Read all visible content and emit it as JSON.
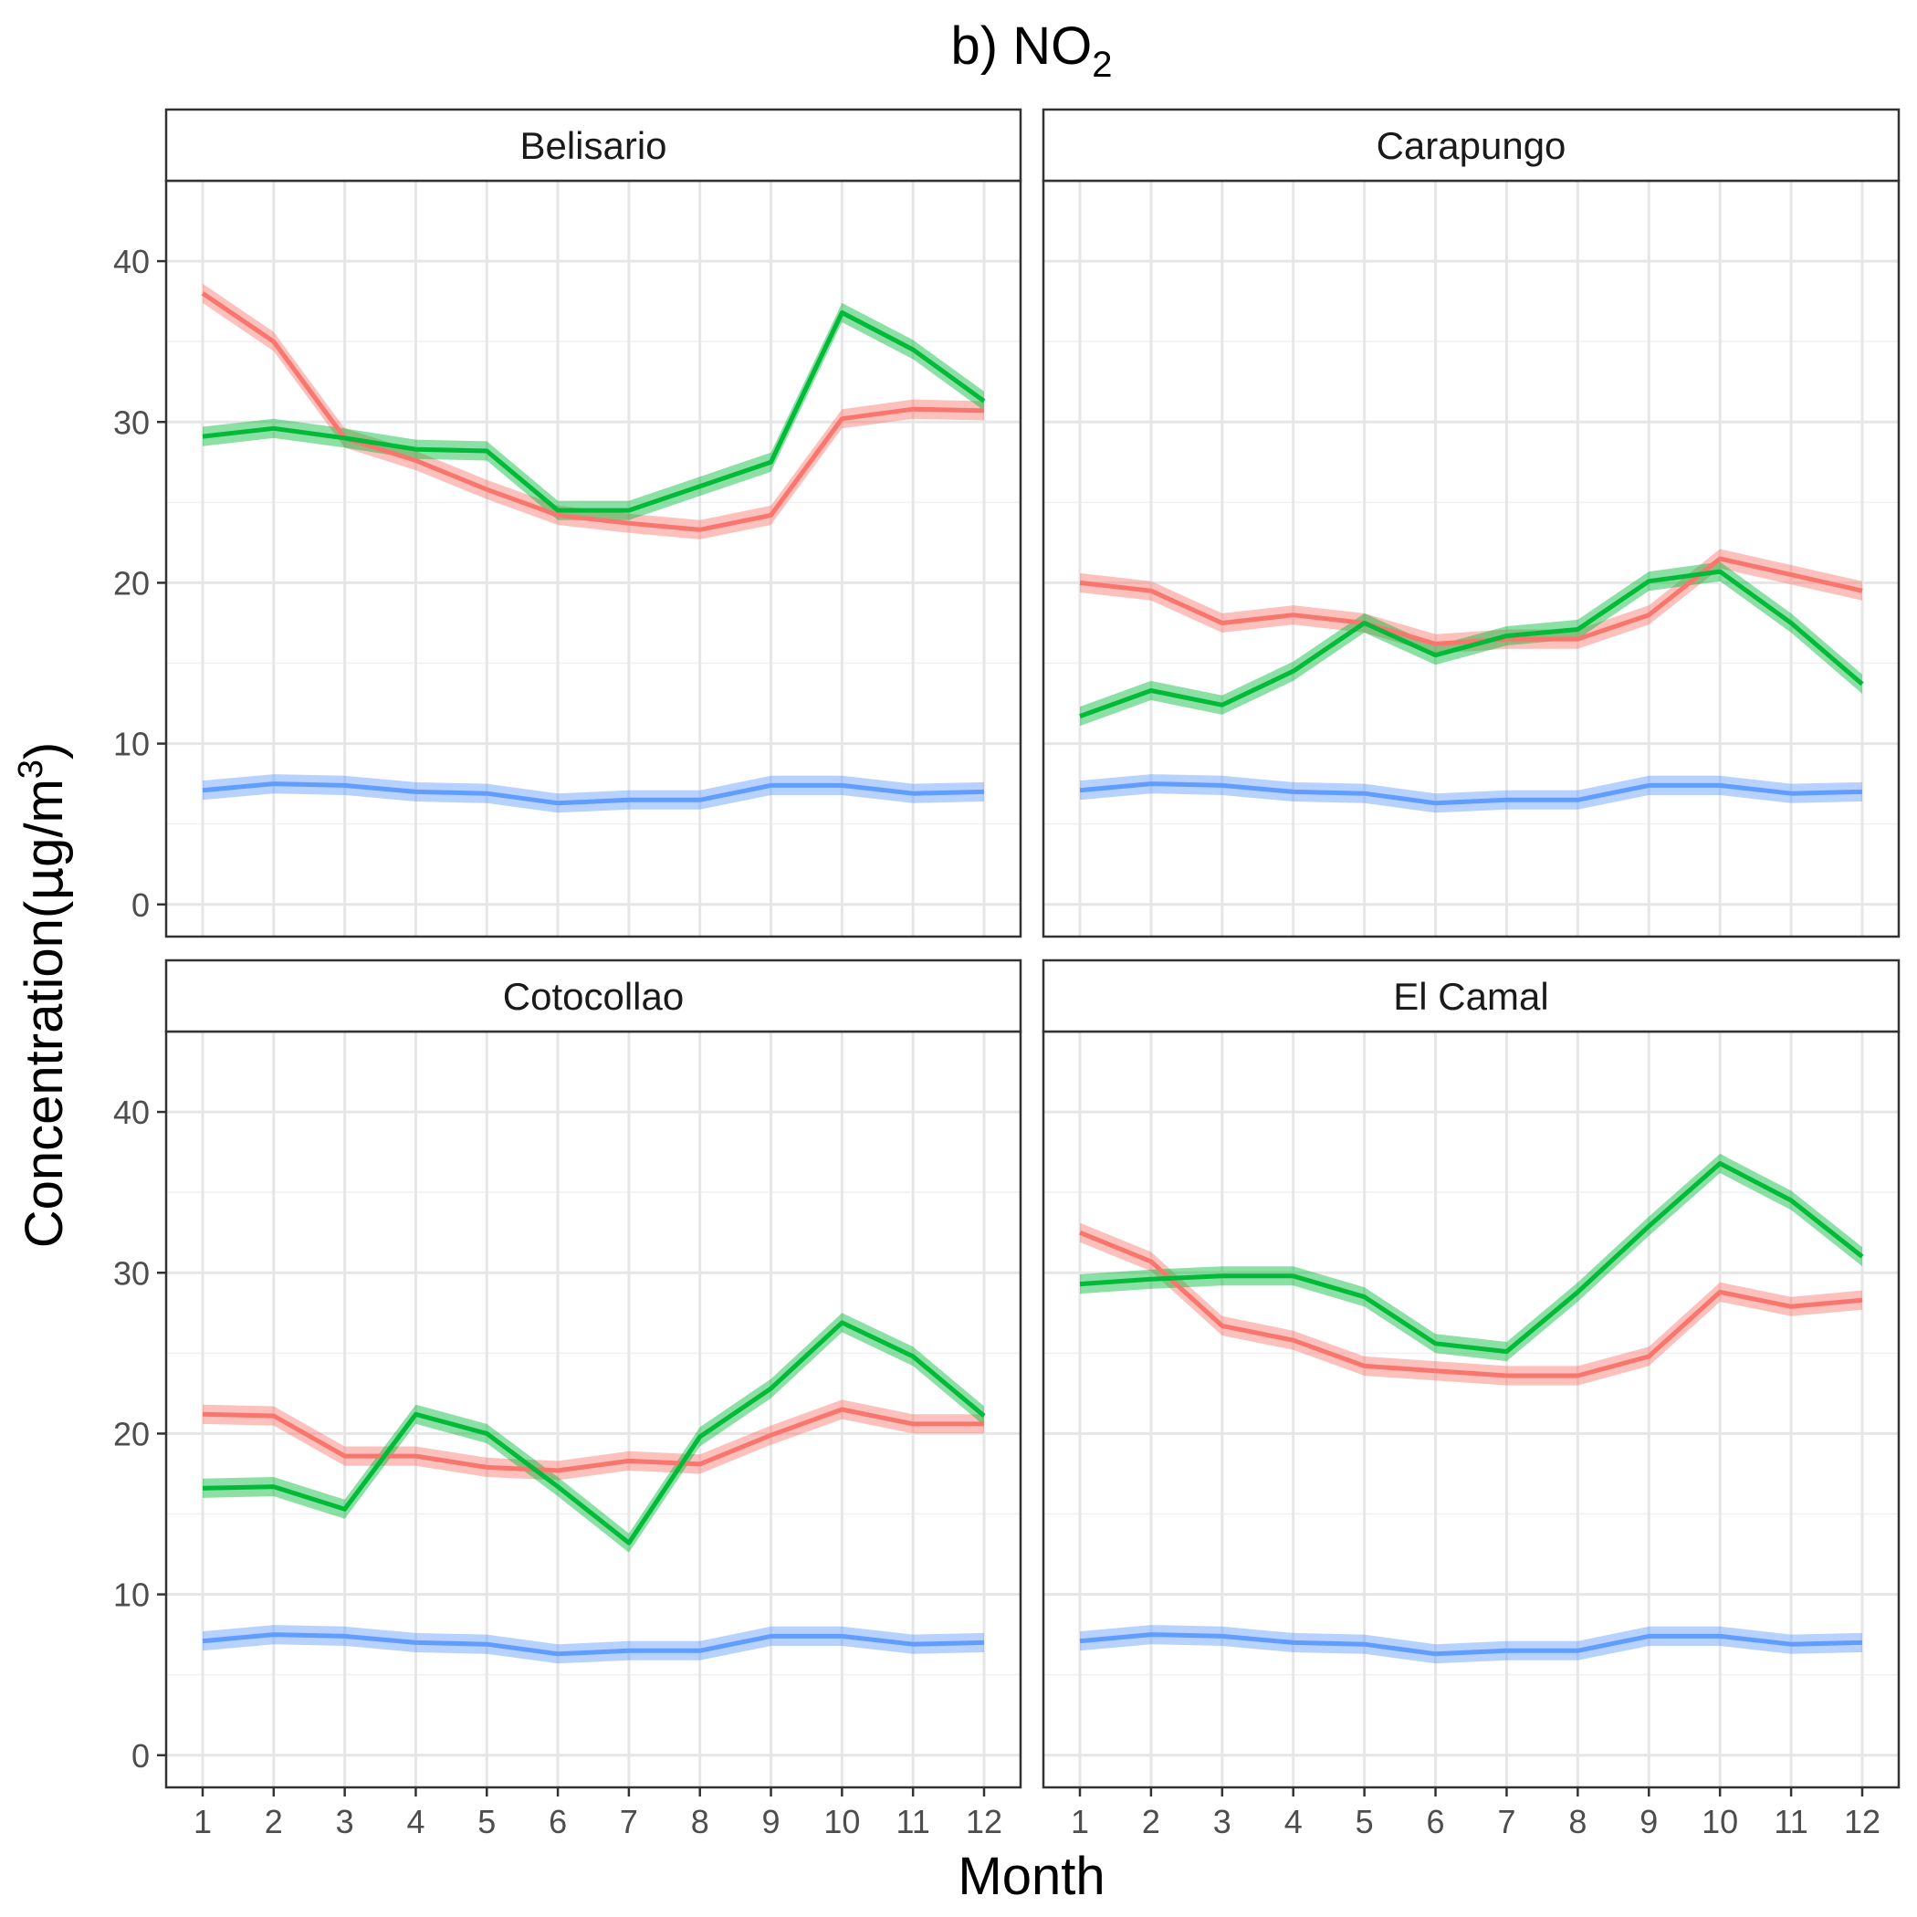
{
  "chart_data": {
    "type": "line",
    "title": "b) NO",
    "title_subscript": "2",
    "xlabel": "Month",
    "ylabel_parts": [
      "Concentration(",
      "μ",
      "g/m",
      "3",
      ")"
    ],
    "x": [
      1,
      2,
      3,
      4,
      5,
      6,
      7,
      8,
      9,
      10,
      11,
      12
    ],
    "ylim": [
      -2,
      45
    ],
    "yticks": [
      0,
      10,
      20,
      30,
      40
    ],
    "grid": true,
    "legend": "none",
    "colors": {
      "red": "#F8766D",
      "green": "#00BA38",
      "blue": "#619CFF"
    },
    "panels": [
      {
        "name": "Belisario",
        "series": [
          {
            "color": "red",
            "values": [
              38.0,
              35.0,
              29.0,
              27.6,
              25.8,
              24.2,
              23.7,
              23.3,
              24.2,
              30.2,
              30.8,
              30.7
            ]
          },
          {
            "color": "green",
            "values": [
              29.1,
              29.6,
              29.0,
              28.3,
              28.2,
              24.5,
              24.5,
              26.0,
              27.5,
              36.8,
              34.5,
              31.3
            ]
          },
          {
            "color": "blue",
            "values": [
              7.1,
              7.5,
              7.4,
              7.0,
              6.9,
              6.3,
              6.5,
              6.5,
              7.4,
              7.4,
              6.9,
              7.0
            ]
          }
        ]
      },
      {
        "name": "Carapungo",
        "series": [
          {
            "color": "red",
            "values": [
              20.0,
              19.5,
              17.5,
              18.0,
              17.5,
              16.2,
              16.5,
              16.5,
              18.0,
              21.5,
              20.5,
              19.5
            ]
          },
          {
            "color": "green",
            "values": [
              11.7,
              13.3,
              12.4,
              14.5,
              17.5,
              15.5,
              16.7,
              17.1,
              20.1,
              20.7,
              17.5,
              13.7
            ]
          },
          {
            "color": "blue",
            "values": [
              7.1,
              7.5,
              7.4,
              7.0,
              6.9,
              6.3,
              6.5,
              6.5,
              7.4,
              7.4,
              6.9,
              7.0
            ]
          }
        ]
      },
      {
        "name": "Cotocollao",
        "series": [
          {
            "color": "red",
            "values": [
              21.2,
              21.1,
              18.6,
              18.6,
              17.9,
              17.7,
              18.3,
              18.1,
              19.9,
              21.5,
              20.6,
              20.6
            ]
          },
          {
            "color": "green",
            "values": [
              16.6,
              16.7,
              15.3,
              21.2,
              20.0,
              16.7,
              13.2,
              19.8,
              22.8,
              26.9,
              24.8,
              21.1
            ]
          },
          {
            "color": "blue",
            "values": [
              7.1,
              7.5,
              7.4,
              7.0,
              6.9,
              6.3,
              6.5,
              6.5,
              7.4,
              7.4,
              6.9,
              7.0
            ]
          }
        ]
      },
      {
        "name": "El Camal",
        "series": [
          {
            "color": "red",
            "values": [
              32.5,
              30.7,
              26.7,
              25.8,
              24.2,
              23.9,
              23.6,
              23.6,
              24.8,
              28.8,
              27.9,
              28.3
            ]
          },
          {
            "color": "green",
            "values": [
              29.3,
              29.6,
              29.8,
              29.8,
              28.5,
              25.6,
              25.1,
              28.8,
              32.9,
              36.8,
              34.5,
              31.0
            ]
          },
          {
            "color": "blue",
            "values": [
              7.1,
              7.5,
              7.4,
              7.0,
              6.9,
              6.3,
              6.5,
              6.5,
              7.4,
              7.4,
              6.9,
              7.0
            ]
          }
        ]
      }
    ]
  }
}
